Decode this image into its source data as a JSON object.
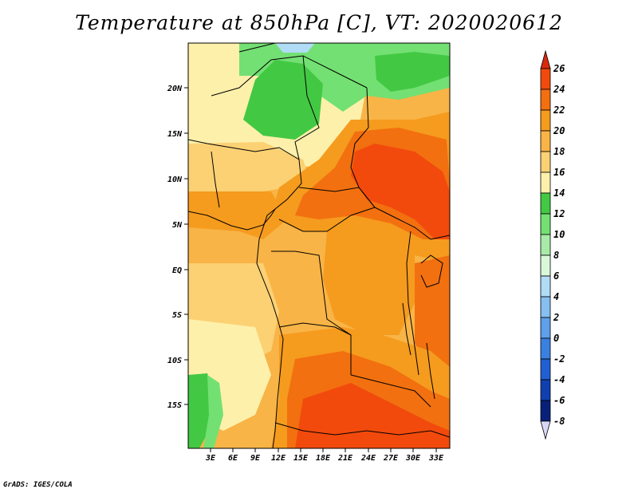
{
  "title": "Temperature at 850hPa [C], VT: 2020020612",
  "credit": "GrADS: IGES/COLA",
  "map": {
    "lat_labels": [
      "20N",
      "15N",
      "10N",
      "5N",
      "EQ",
      "5S",
      "10S",
      "15S"
    ],
    "lon_labels": [
      "3E",
      "6E",
      "9E",
      "12E",
      "15E",
      "18E",
      "21E",
      "24E",
      "27E",
      "30E",
      "33E"
    ]
  },
  "colorbar": {
    "levels": [
      "26",
      "24",
      "22",
      "20",
      "18",
      "16",
      "14",
      "12",
      "10",
      "8",
      "6",
      "4",
      "2",
      "0",
      "-2",
      "-4",
      "-6",
      "-8"
    ],
    "colors": {
      "over": "#d92b0c",
      "26_24": "#f24a0c",
      "24_22": "#f2700f",
      "22_20": "#f59b1e",
      "20_18": "#f8b446",
      "18_16": "#fbd174",
      "16_14": "#fdf0aa",
      "14_12": "#43c843",
      "12_10": "#73e073",
      "10_8": "#a8eba8",
      "8_6": "#d9f8d9",
      "6_4": "#b0dcf6",
      "4_2": "#86bff0",
      "2_0": "#5ea0ea",
      "0_m2": "#3a80e0",
      "m2_m4": "#2060d2",
      "m4_m6": "#1040b0",
      "m6_m8": "#08207a",
      "under": "#d8d8f4"
    }
  }
}
